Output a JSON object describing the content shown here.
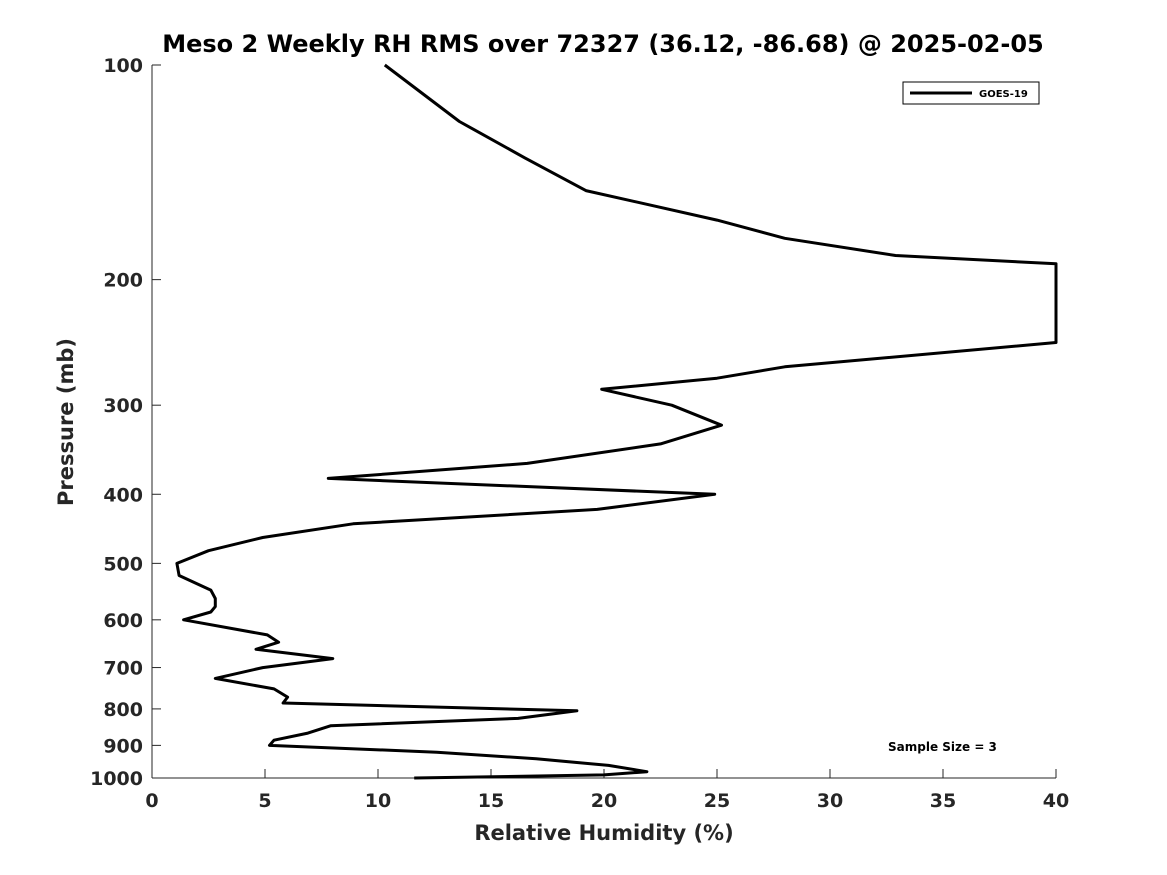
{
  "chart_data": {
    "type": "line",
    "title": "Meso 2 Weekly RH RMS over 72327 (36.12, -86.68) @ 2025-02-05",
    "xlabel": "Relative Humidity (%)",
    "ylabel": "Pressure (mb)",
    "xlim": [
      0,
      40
    ],
    "ylim": [
      100,
      1000
    ],
    "y_scale": "log",
    "y_reversed": true,
    "x_ticks": [
      0,
      5,
      10,
      15,
      20,
      25,
      30,
      35,
      40
    ],
    "y_ticks": [
      100,
      200,
      300,
      400,
      500,
      600,
      700,
      800,
      900,
      1000
    ],
    "grid": false,
    "legend_position": "top-right",
    "annotation": "Sample Size = 3",
    "series": [
      {
        "name": "GOES-19",
        "color": "#000000",
        "x": [
          10.3,
          13.6,
          16.5,
          19.2,
          25.0,
          28.0,
          32.9,
          40.0,
          40.0,
          28.0,
          25.0,
          19.9,
          23.0,
          25.2,
          22.5,
          16.6,
          7.8,
          24.9,
          19.7,
          8.9,
          4.9,
          2.5,
          1.1,
          1.2,
          2.6,
          2.8,
          2.8,
          2.6,
          1.4,
          5.1,
          5.6,
          4.6,
          8.0,
          4.9,
          2.8,
          5.4,
          6.0,
          5.8,
          18.8,
          16.2,
          7.9,
          6.9,
          5.4,
          5.2,
          12.6,
          17.0,
          20.2,
          21.9,
          20.0,
          11.6
        ],
        "y": [
          100,
          120,
          135,
          150,
          165,
          175,
          185,
          190,
          245,
          265,
          275,
          285,
          300,
          320,
          340,
          362,
          380,
          400,
          420,
          440,
          460,
          480,
          500,
          520,
          545,
          560,
          575,
          585,
          600,
          630,
          645,
          660,
          680,
          700,
          725,
          750,
          770,
          785,
          805,
          825,
          845,
          865,
          885,
          900,
          920,
          940,
          960,
          980,
          990,
          1000
        ]
      }
    ]
  }
}
